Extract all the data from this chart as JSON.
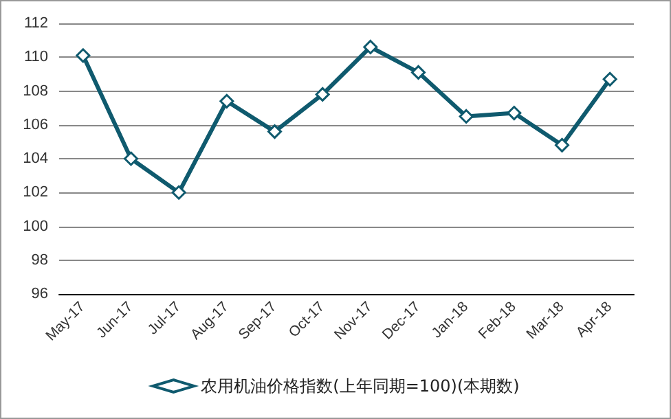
{
  "chart_data": {
    "type": "line",
    "categories": [
      "May-17",
      "Jun-17",
      "Jul-17",
      "Aug-17",
      "Sep-17",
      "Oct-17",
      "Nov-17",
      "Dec-17",
      "Jan-18",
      "Feb-18",
      "Mar-18",
      "Apr-18"
    ],
    "series": [
      {
        "name": "农用机油价格指数(上年同期=100)(本期数)",
        "color": "#0f5a6e",
        "values": [
          110.1,
          104.0,
          102.0,
          107.4,
          105.6,
          107.8,
          110.6,
          109.1,
          106.5,
          106.7,
          104.8,
          108.7
        ]
      }
    ],
    "ylim": [
      96,
      112
    ],
    "yticks": [
      96,
      98,
      100,
      102,
      104,
      106,
      108,
      110,
      112
    ],
    "grid": "y",
    "legend": "bottom",
    "marker": "diamond",
    "line_style": "solid"
  }
}
